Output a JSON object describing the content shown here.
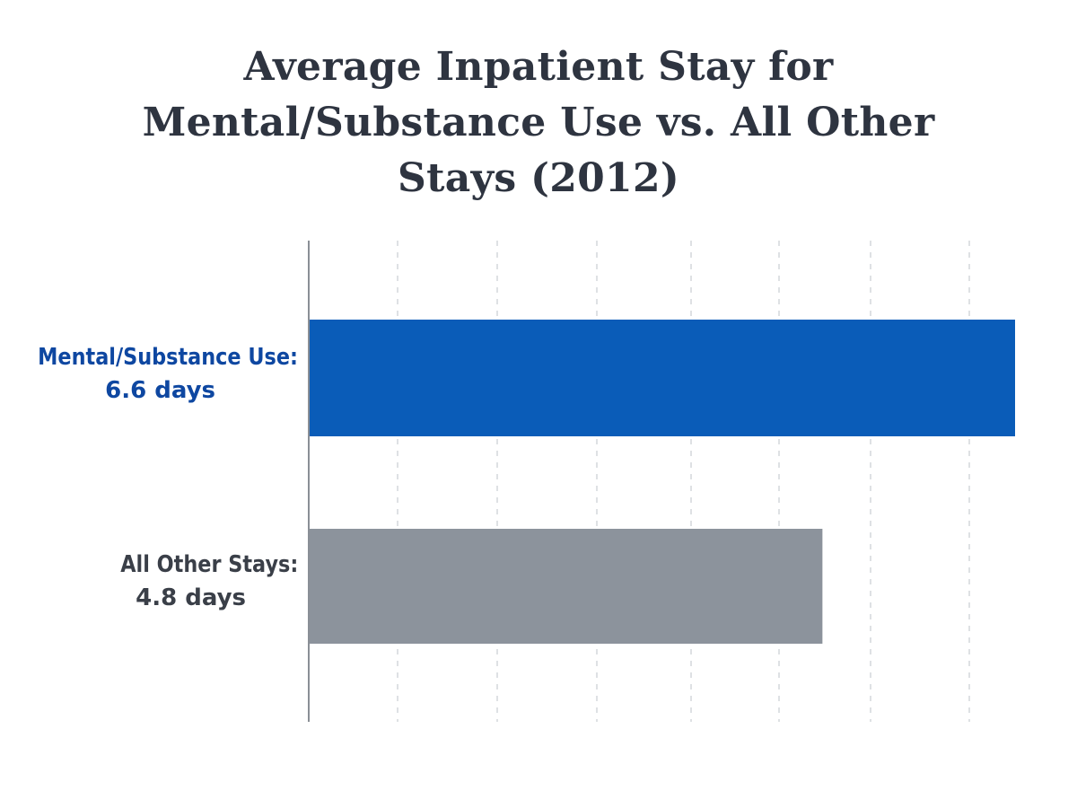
{
  "title_lines": [
    "Average Inpatient Stay for",
    "Mental/Substance Use vs. All Other",
    "Stays (2012)"
  ],
  "chart_data": {
    "type": "bar",
    "orientation": "horizontal",
    "title": "Average Inpatient Stay for Mental/Substance Use vs. All Other Stays (2012)",
    "categories": [
      "Mental/Substance Use:",
      "All Other Stays:"
    ],
    "value_labels": [
      "6.6 days",
      "4.8 days"
    ],
    "values": [
      6.6,
      4.8
    ],
    "unit": "days",
    "colors": [
      "#0a5cb8",
      "#8c939c"
    ],
    "label_colors": [
      "#0e47a1",
      "#3a3f48"
    ],
    "xlim": [
      0,
      6.6
    ],
    "grid": true,
    "grid_style": "dashed vertical",
    "axis_tick_labels_shown": false,
    "legend": "none"
  }
}
